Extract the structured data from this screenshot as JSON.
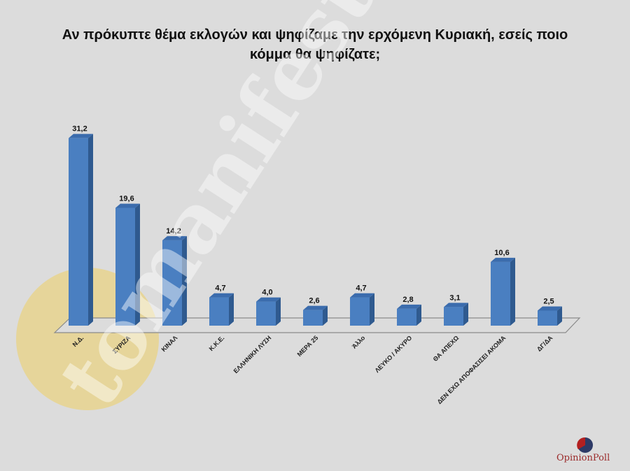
{
  "title": "Αν πρόκυπτε θέμα εκλογών και ψηφίζαμε την ερχόμενη Κυριακή, εσείς ποιο κόμμα θα ψηφίζατε;",
  "title_line1": "Αν πρόκυπτε θέμα εκλογών και ψηφίζαμε την ερχόμενη Κυριακή, εσείς ποιο",
  "title_line2": "κόμμα θα ψηφίζατε;",
  "watermark": "tomanifesto",
  "logo": {
    "text": "OpinionPoll",
    "icon": "opinionpoll-circle-icon"
  },
  "colors": {
    "bar_front": "#4a7fc1",
    "bar_side": "#2f5a8f",
    "bar_top": "#3b6cad",
    "background": "#dcdcdc",
    "watermark_circle": "#e8d48e"
  },
  "chart_data": {
    "type": "bar",
    "title": "Αν πρόκυπτε θέμα εκλογών και ψηφίζαμε την ερχόμενη Κυριακή, εσείς ποιο κόμμα θα ψηφίζατε;",
    "categories": [
      "Ν.Δ.",
      "ΣΥΡΙΖΑ",
      "ΚΙΝΑΛ",
      "Κ.Κ.Ε.",
      "ΕΛΛΗΝΙΚΗ ΛΥΣΗ",
      "ΜΕΡΑ 25",
      "Άλλο",
      "ΛΕΥΚΟ / ΑΚΥΡΟ",
      "ΘΑ ΑΠΕΧΩ",
      "ΔΕΝ ΕΧΩ ΑΠΟΦΑΣΙΣΕΙ ΑΚΟΜΑ",
      "ΔΓ/ΔΑ"
    ],
    "values": [
      31.2,
      19.6,
      14.2,
      4.7,
      4.0,
      2.6,
      4.7,
      2.8,
      3.1,
      10.6,
      2.5
    ],
    "value_labels": [
      "31,2",
      "19,6",
      "14,2",
      "4,7",
      "4,0",
      "2,6",
      "4,7",
      "2,8",
      "3,1",
      "10,6",
      "2,5"
    ],
    "xlabel": "",
    "ylabel": "",
    "ylim": [
      0,
      32
    ],
    "grid": false,
    "legend": "none",
    "style": "3d-column"
  }
}
